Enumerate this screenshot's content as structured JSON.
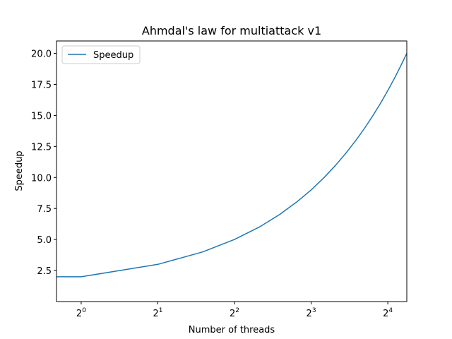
{
  "chart_data": {
    "type": "line",
    "title": "Ahmdal's law for multiattack v1",
    "xlabel": "Number of threads",
    "ylabel": "Speedup",
    "x_scale": "log2",
    "xlim": [
      0.8,
      19.0
    ],
    "ylim": [
      0.0,
      21.0
    ],
    "x_ticks": [
      {
        "value": 1,
        "base": "2",
        "exp": "0"
      },
      {
        "value": 2,
        "base": "2",
        "exp": "1"
      },
      {
        "value": 4,
        "base": "2",
        "exp": "2"
      },
      {
        "value": 8,
        "base": "2",
        "exp": "3"
      },
      {
        "value": 16,
        "base": "2",
        "exp": "4"
      }
    ],
    "y_ticks": [
      "2.5",
      "5.0",
      "7.5",
      "10.0",
      "12.5",
      "15.0",
      "17.5",
      "20.0"
    ],
    "legend": {
      "placement": "upper-left"
    },
    "series": [
      {
        "name": "Speedup",
        "color": "#1f77b4",
        "x": [
          0.8,
          1,
          2,
          3,
          4,
          5,
          6,
          7,
          8,
          9,
          10,
          11,
          12,
          13,
          14,
          15,
          16,
          17,
          18,
          19
        ],
        "y": [
          2,
          2,
          3,
          4,
          5,
          6,
          7,
          8,
          9,
          10,
          11,
          12,
          13,
          14,
          15,
          16,
          17,
          18,
          19,
          20
        ]
      }
    ]
  }
}
